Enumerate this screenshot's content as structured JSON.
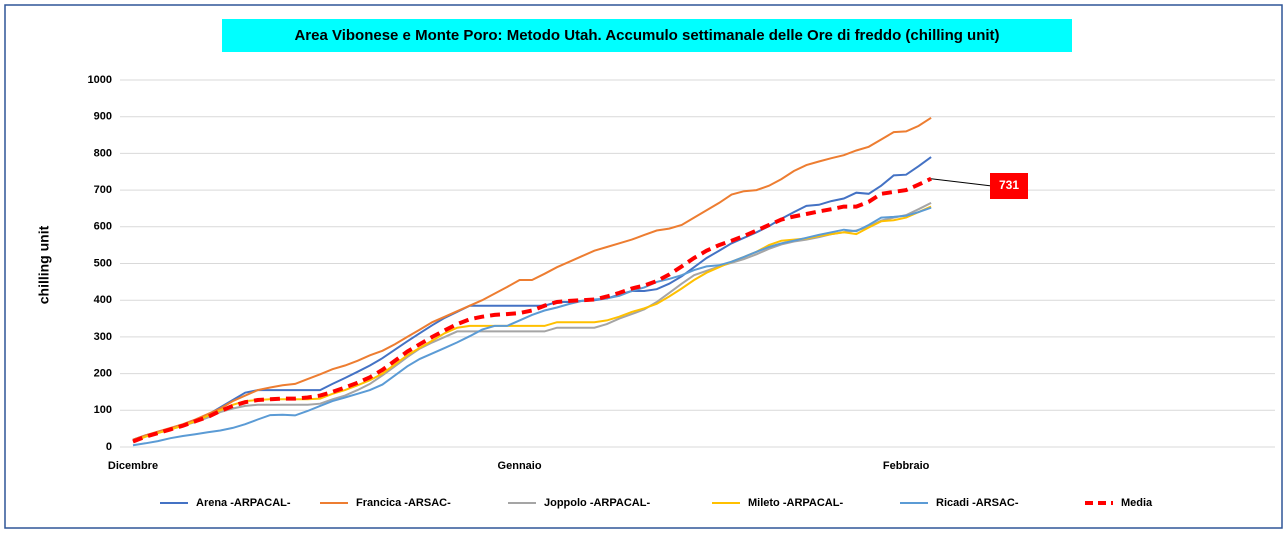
{
  "chart_data": {
    "type": "line",
    "title": "Area Vibonese e Monte Poro: Metodo Utah. Accumulo settimanale delle Ore di freddo (chilling unit)",
    "y_label": "chilling unit",
    "categories": [
      "Dicembre",
      null,
      null,
      null,
      null,
      null,
      null,
      null,
      null,
      null,
      null,
      null,
      null,
      null,
      null,
      null,
      null,
      null,
      null,
      null,
      null,
      null,
      null,
      null,
      null,
      null,
      null,
      null,
      null,
      null,
      null,
      "Gennaio",
      null,
      null,
      null,
      null,
      null,
      null,
      null,
      null,
      null,
      null,
      null,
      null,
      null,
      null,
      null,
      null,
      null,
      null,
      null,
      null,
      null,
      null,
      null,
      null,
      null,
      null,
      null,
      null,
      null,
      null,
      "Febbraio",
      null,
      null
    ],
    "ylim": [
      0,
      1000
    ],
    "yticks": [
      0,
      100,
      200,
      300,
      400,
      500,
      600,
      700,
      800,
      900,
      1000
    ],
    "grid": true,
    "series": [
      {
        "name": "Arena -ARPACAL-",
        "color": "#4472c4",
        "values": [
          20,
          32,
          40,
          50,
          60,
          72,
          88,
          108,
          128,
          148,
          155,
          155,
          155,
          155,
          155,
          155,
          172,
          188,
          205,
          222,
          242,
          265,
          288,
          310,
          332,
          352,
          368,
          385,
          385,
          385,
          385,
          385,
          385,
          385,
          395,
          395,
          398,
          400,
          405,
          415,
          425,
          425,
          430,
          445,
          465,
          490,
          515,
          535,
          555,
          570,
          585,
          602,
          622,
          640,
          657,
          660,
          670,
          677,
          693,
          690,
          712,
          740,
          742,
          765,
          790
        ]
      },
      {
        "name": "Francica -ARSAC-",
        "color": "#ed7d31",
        "values": [
          20,
          32,
          42,
          52,
          62,
          75,
          90,
          105,
          125,
          140,
          155,
          162,
          168,
          172,
          185,
          198,
          212,
          222,
          235,
          250,
          262,
          280,
          300,
          320,
          340,
          355,
          370,
          385,
          400,
          418,
          436,
          455,
          455,
          472,
          490,
          505,
          520,
          535,
          545,
          555,
          565,
          578,
          590,
          595,
          605,
          625,
          645,
          665,
          688,
          697,
          700,
          712,
          730,
          752,
          768,
          778,
          787,
          795,
          808,
          818,
          838,
          858,
          860,
          875,
          897
        ]
      },
      {
        "name": "Joppolo  -ARPACAL-",
        "color": "#a5a5a5",
        "values": [
          15,
          28,
          38,
          48,
          58,
          68,
          80,
          95,
          105,
          112,
          115,
          115,
          115,
          115,
          115,
          118,
          130,
          140,
          155,
          172,
          195,
          220,
          245,
          268,
          285,
          300,
          315,
          315,
          315,
          315,
          315,
          315,
          315,
          315,
          325,
          325,
          325,
          325,
          335,
          350,
          362,
          375,
          395,
          420,
          445,
          468,
          480,
          492,
          502,
          512,
          525,
          540,
          552,
          560,
          565,
          572,
          580,
          585,
          590,
          600,
          617,
          625,
          632,
          648,
          665
        ]
      },
      {
        "name": "Mileto -ARPACAL-",
        "color": "#ffc000",
        "values": [
          15,
          28,
          38,
          48,
          58,
          70,
          85,
          100,
          115,
          125,
          128,
          130,
          130,
          130,
          130,
          132,
          145,
          155,
          168,
          182,
          200,
          225,
          250,
          270,
          290,
          310,
          325,
          330,
          330,
          330,
          330,
          330,
          330,
          330,
          340,
          340,
          340,
          340,
          345,
          355,
          368,
          378,
          390,
          410,
          432,
          455,
          475,
          490,
          505,
          518,
          532,
          550,
          562,
          565,
          568,
          575,
          580,
          585,
          580,
          598,
          615,
          618,
          625,
          640,
          655
        ]
      },
      {
        "name": "Ricadi -ARSAC-",
        "color": "#5b9bd5",
        "values": [
          5,
          10,
          16,
          24,
          30,
          35,
          40,
          45,
          52,
          62,
          75,
          87,
          88,
          86,
          98,
          112,
          125,
          135,
          145,
          155,
          170,
          195,
          220,
          240,
          255,
          270,
          285,
          302,
          320,
          330,
          330,
          345,
          360,
          372,
          380,
          390,
          398,
          402,
          405,
          412,
          425,
          435,
          450,
          458,
          468,
          482,
          492,
          495,
          505,
          518,
          532,
          545,
          555,
          562,
          570,
          578,
          585,
          592,
          588,
          605,
          625,
          627,
          630,
          640,
          652
        ]
      },
      {
        "name": "Media",
        "color": "#ff0000",
        "dashed": true,
        "values": [
          15,
          28,
          38,
          48,
          58,
          70,
          82,
          98,
          112,
          122,
          128,
          130,
          132,
          132,
          135,
          140,
          150,
          162,
          175,
          190,
          210,
          235,
          260,
          280,
          300,
          318,
          335,
          348,
          355,
          360,
          362,
          365,
          372,
          385,
          395,
          398,
          400,
          402,
          410,
          420,
          432,
          440,
          452,
          470,
          492,
          515,
          535,
          550,
          562,
          575,
          590,
          605,
          620,
          628,
          635,
          642,
          648,
          655,
          655,
          668,
          690,
          695,
          700,
          715,
          731
        ]
      }
    ]
  }
}
